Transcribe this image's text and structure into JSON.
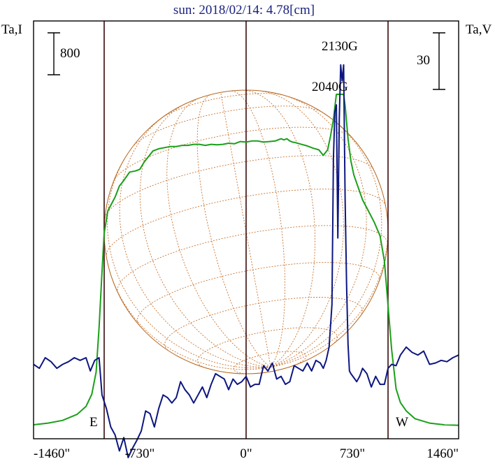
{
  "chart_data": {
    "type": "line",
    "title": "sun: 2018/02/14: 4.78[cm]",
    "left_axis_label": "Ta,I",
    "right_axis_label": "Ta,V",
    "left_scale_bar": "800",
    "right_scale_bar": "30",
    "x_tick_labels": [
      "-1460\"",
      "-730\"",
      "0\"",
      "730\"",
      "1460\""
    ],
    "x_ticks": [
      -1460,
      -730,
      0,
      730,
      1460
    ],
    "xlim": [
      -1460,
      1460
    ],
    "limb_markers": {
      "east": "E",
      "west": "W",
      "east_x": -975,
      "west_x": 975
    },
    "disk_radius_arcsec": 975,
    "annotations": [
      {
        "text": "2130G",
        "x": 660
      },
      {
        "text": "2040G",
        "x": 610
      }
    ],
    "grid": false,
    "colors": {
      "stokes_i": "#1aa01a",
      "stokes_v": "#0d1680",
      "disk": "#b5651d",
      "grid": "#c87532",
      "title": "#1a237e",
      "axis": "#000000",
      "vline": "#3a0a0a"
    },
    "series": [
      {
        "name": "Ta,I",
        "color": "#1aa01a",
        "ylim": [
          0,
          6000
        ],
        "x": [
          -1460,
          -1360,
          -1260,
          -1160,
          -1100,
          -1060,
          -1030,
          -1010,
          -990,
          -975,
          -950,
          -900,
          -870,
          -840,
          -800,
          -760,
          -730,
          -700,
          -670,
          -640,
          -600,
          -560,
          -520,
          -480,
          -440,
          -400,
          -360,
          -320,
          -280,
          -240,
          -200,
          -160,
          -120,
          -80,
          -40,
          0,
          40,
          80,
          120,
          160,
          200,
          240,
          260,
          280,
          300,
          320,
          340,
          380,
          420,
          460,
          500,
          530,
          560,
          580,
          600,
          620,
          640,
          650,
          660,
          670,
          680,
          700,
          720,
          740,
          760,
          800,
          840,
          880,
          920,
          950,
          975,
          1000,
          1030,
          1060,
          1100,
          1160,
          1260,
          1360,
          1460
        ],
        "values": [
          50,
          80,
          130,
          240,
          380,
          600,
          1000,
          1800,
          2800,
          3500,
          3900,
          4150,
          4350,
          4450,
          4600,
          4620,
          4650,
          4780,
          4880,
          4980,
          5020,
          5040,
          5060,
          5060,
          5080,
          5080,
          5100,
          5100,
          5080,
          5100,
          5090,
          5100,
          5120,
          5110,
          5150,
          5140,
          5160,
          5160,
          5140,
          5150,
          5160,
          5200,
          5180,
          5200,
          5160,
          5140,
          5130,
          5100,
          5070,
          5030,
          5000,
          4900,
          5000,
          5250,
          5550,
          6000,
          6000,
          6000,
          6000,
          6000,
          5800,
          5200,
          4800,
          4550,
          4400,
          4100,
          3900,
          3700,
          3450,
          3000,
          2200,
          1400,
          700,
          450,
          300,
          160,
          80,
          50,
          40
        ]
      },
      {
        "name": "Ta,V",
        "color": "#0d1680",
        "ylim": [
          -120,
          250
        ],
        "x": [
          -1460,
          -1420,
          -1380,
          -1340,
          -1300,
          -1260,
          -1220,
          -1180,
          -1140,
          -1100,
          -1070,
          -1040,
          -1010,
          -990,
          -960,
          -930,
          -900,
          -870,
          -840,
          -810,
          -780,
          -750,
          -720,
          -690,
          -660,
          -630,
          -600,
          -570,
          -540,
          -510,
          -480,
          -450,
          -420,
          -390,
          -360,
          -330,
          -300,
          -270,
          -240,
          -210,
          -180,
          -150,
          -120,
          -90,
          -60,
          -30,
          0,
          30,
          60,
          90,
          120,
          150,
          180,
          210,
          240,
          270,
          300,
          330,
          360,
          390,
          420,
          450,
          480,
          510,
          530,
          550,
          570,
          590,
          600,
          610,
          620,
          630,
          640,
          650,
          660,
          670,
          680,
          690,
          700,
          710,
          720,
          740,
          760,
          780,
          800,
          830,
          860,
          890,
          920,
          950,
          975,
          1000,
          1030,
          1060,
          1100,
          1140,
          1180,
          1220,
          1260,
          1300,
          1340,
          1380,
          1420,
          1460
        ],
        "values": [
          -5,
          -8,
          0,
          -3,
          -8,
          -5,
          -3,
          0,
          -2,
          0,
          -10,
          -2,
          0,
          -28,
          -38,
          -52,
          -58,
          -70,
          -60,
          -75,
          -68,
          -62,
          -55,
          -40,
          -42,
          -52,
          -38,
          -28,
          -30,
          -34,
          -30,
          -18,
          -24,
          -28,
          -34,
          -28,
          -22,
          -30,
          -20,
          -12,
          -14,
          -16,
          -24,
          -16,
          -20,
          -18,
          -14,
          -22,
          -20,
          -20,
          -6,
          -10,
          -4,
          -16,
          -14,
          -20,
          -18,
          -6,
          -8,
          -10,
          -4,
          -10,
          -2,
          -4,
          -8,
          -2,
          8,
          40,
          150,
          185,
          190,
          90,
          180,
          220,
          208,
          220,
          120,
          55,
          10,
          -10,
          -12,
          -15,
          -18,
          -14,
          -8,
          -12,
          -22,
          -14,
          -20,
          -20,
          -8,
          -5,
          -6,
          2,
          8,
          4,
          2,
          5,
          -5,
          -4,
          -2,
          -3,
          0,
          2
        ]
      }
    ]
  }
}
